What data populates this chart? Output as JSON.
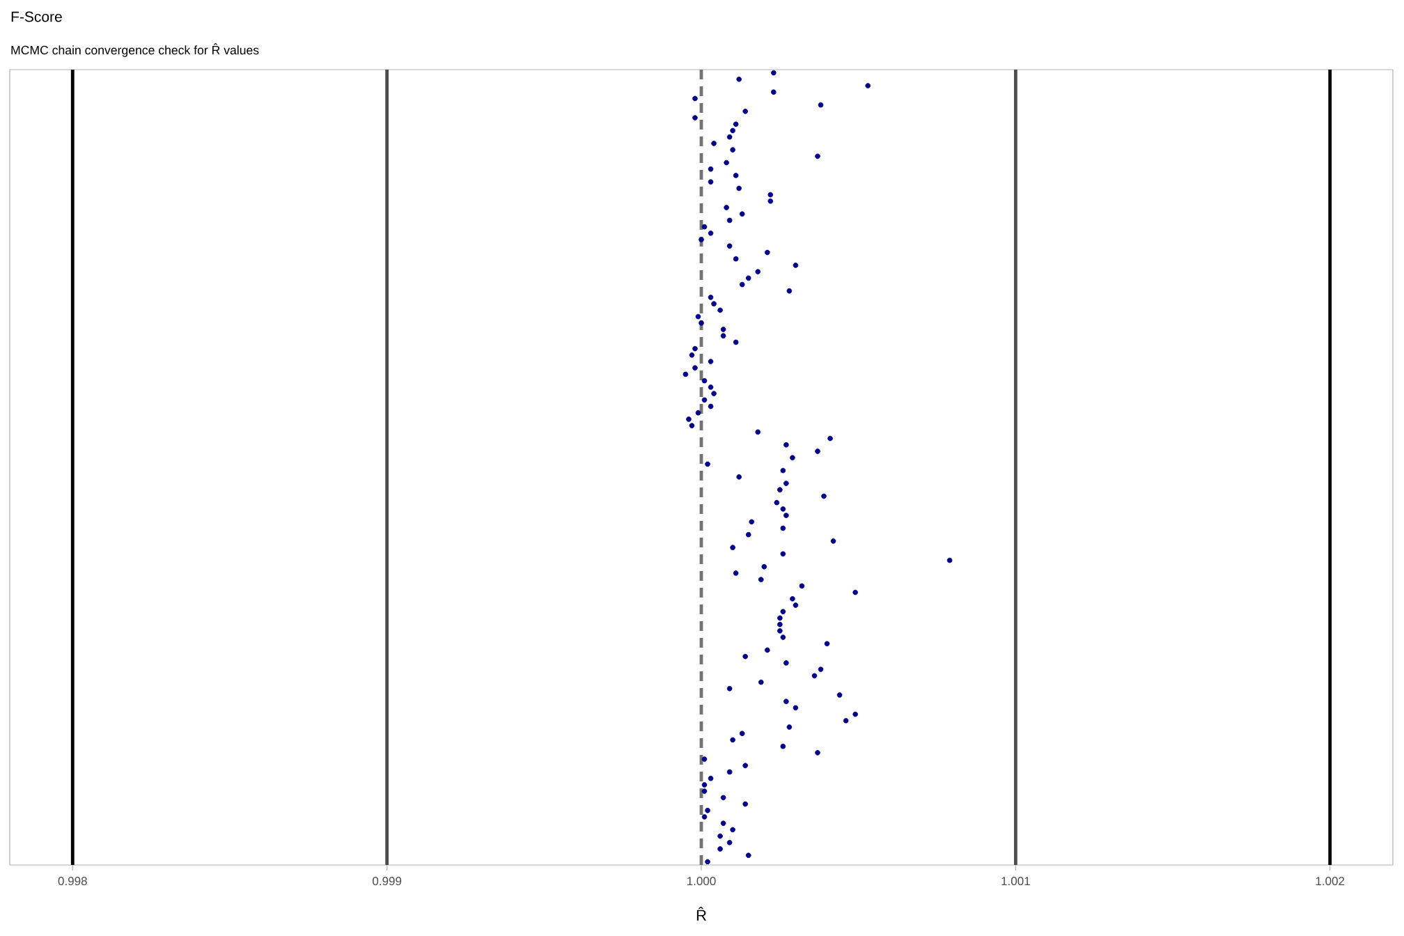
{
  "chart_data": {
    "type": "scatter",
    "orientation": "horizontal",
    "title": "F-Score",
    "subtitle": "MCMC chain convergence check for R̂ values",
    "xlabel": "R̂",
    "categories": [
      null,
      null,
      null,
      null,
      null,
      null,
      null,
      null,
      null,
      null,
      null,
      null,
      null,
      null,
      null,
      null,
      null,
      null,
      null,
      null,
      null,
      null,
      null,
      null,
      null,
      null,
      null,
      null,
      null,
      null,
      null,
      null,
      null,
      null,
      null,
      null,
      null,
      null,
      null,
      null,
      null,
      null,
      null,
      null,
      null,
      null,
      null,
      null,
      null,
      null,
      null,
      null,
      null,
      null,
      null,
      null,
      null,
      null,
      null,
      null,
      null,
      null,
      null,
      null,
      null,
      null,
      null,
      null,
      null,
      null,
      null,
      null,
      null,
      null,
      null,
      null,
      null,
      null,
      null,
      null,
      null,
      null,
      null,
      null,
      null,
      null,
      null,
      null,
      null,
      null,
      null,
      null,
      null,
      null,
      null,
      null,
      null,
      null,
      null,
      null,
      null,
      null,
      null,
      null,
      null,
      null,
      null,
      null,
      null,
      null,
      null,
      null,
      null,
      null,
      null,
      null,
      null,
      null,
      null,
      null,
      null,
      null,
      null,
      null
    ],
    "values": [
      1.00023,
      1.00012,
      1.00053,
      1.00023,
      0.99998,
      1.00038,
      1.00014,
      0.99998,
      1.00011,
      1.0001,
      1.00009,
      1.00004,
      1.0001,
      1.00037,
      1.00008,
      1.00003,
      1.00011,
      1.00003,
      1.00012,
      1.00022,
      1.00022,
      1.00008,
      1.00013,
      1.00009,
      1.00001,
      1.00003,
      1.0,
      1.00009,
      1.00021,
      1.00011,
      1.0003,
      1.00018,
      1.00015,
      1.00013,
      1.00028,
      1.00003,
      1.00004,
      1.00006,
      0.99999,
      1.0,
      1.00007,
      1.00007,
      1.00011,
      0.99998,
      0.99997,
      1.00003,
      0.99998,
      0.99995,
      1.00001,
      1.00003,
      1.00004,
      1.00001,
      1.00003,
      0.99999,
      0.99996,
      0.99997,
      1.00018,
      1.00041,
      1.00027,
      1.00037,
      1.00029,
      1.00002,
      1.00026,
      1.00012,
      1.00027,
      1.00025,
      1.00039,
      1.00024,
      1.00026,
      1.00027,
      1.00016,
      1.00026,
      1.00015,
      1.00042,
      1.0001,
      1.00026,
      1.00079,
      1.0002,
      1.00011,
      1.00019,
      1.00032,
      1.00049,
      1.00029,
      1.0003,
      1.00026,
      1.00025,
      1.00025,
      1.00025,
      1.00026,
      1.0004,
      1.00021,
      1.00014,
      1.00027,
      1.00038,
      1.00036,
      1.00019,
      1.00009,
      1.00044,
      1.00027,
      1.0003,
      1.00049,
      1.00046,
      1.00028,
      1.00013,
      1.0001,
      1.00026,
      1.00037,
      1.00001,
      1.00014,
      1.00009,
      1.00003,
      1.00001,
      1.00001,
      1.00007,
      1.00014,
      1.00002,
      1.00001,
      1.00007,
      1.0001,
      1.00006,
      1.00009,
      1.00006,
      1.00015,
      1.00002
    ],
    "color": "#00008b",
    "tick_labels": "x",
    "xlim": [
      0.9978,
      1.0022
    ],
    "xticks": [
      0.998,
      0.999,
      {
        "value": 1,
        "label": "1.000"
      },
      1.001,
      1.002
    ],
    "ref_lines": [
      {
        "axis": "x",
        "value": 0.998,
        "color": "#000000",
        "line_style": "solid"
      },
      {
        "axis": "x",
        "value": 0.999,
        "color": "#4d4d4d",
        "line_style": "solid"
      },
      {
        "axis": "x",
        "value": 1,
        "color": "#737373",
        "line_style": "dashed"
      },
      {
        "axis": "x",
        "value": 1.001,
        "color": "#4d4d4d",
        "line_style": "solid"
      },
      {
        "axis": "x",
        "value": 1.002,
        "color": "#000000",
        "line_style": "solid"
      }
    ]
  }
}
